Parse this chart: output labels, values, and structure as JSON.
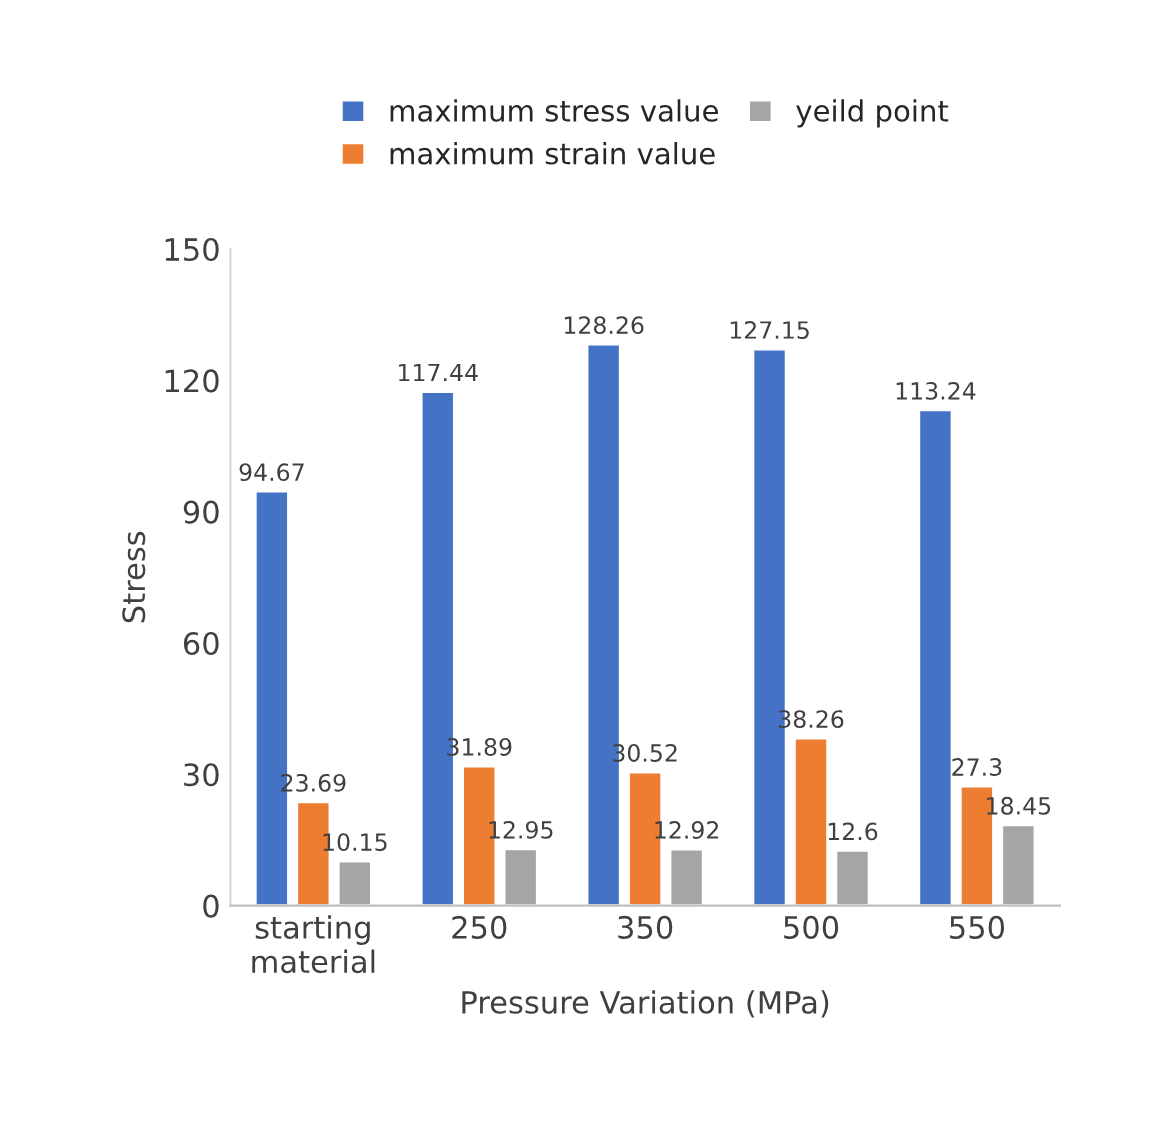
{
  "chart_data": {
    "type": "bar",
    "xlabel": "Pressure Variation (MPa)",
    "ylabel": "Stress",
    "categories": [
      "starting\nmaterial",
      "250",
      "350",
      "500",
      "550"
    ],
    "series": [
      {
        "name": "maximum stress value",
        "color": "#4472c4",
        "values": [
          94.67,
          117.44,
          128.26,
          127.15,
          113.24
        ]
      },
      {
        "name": "maximum strain value",
        "color": "#ed7d31",
        "values": [
          23.69,
          31.89,
          30.52,
          38.26,
          27.3
        ]
      },
      {
        "name": "yeild point",
        "color": "#a5a5a5",
        "values": [
          10.15,
          12.95,
          12.92,
          12.6,
          18.45
        ]
      }
    ],
    "ylim": [
      0,
      150
    ],
    "yticks": [
      0,
      30,
      60,
      90,
      120,
      150
    ],
    "grid": false,
    "legend": "top",
    "data_labels": true
  }
}
